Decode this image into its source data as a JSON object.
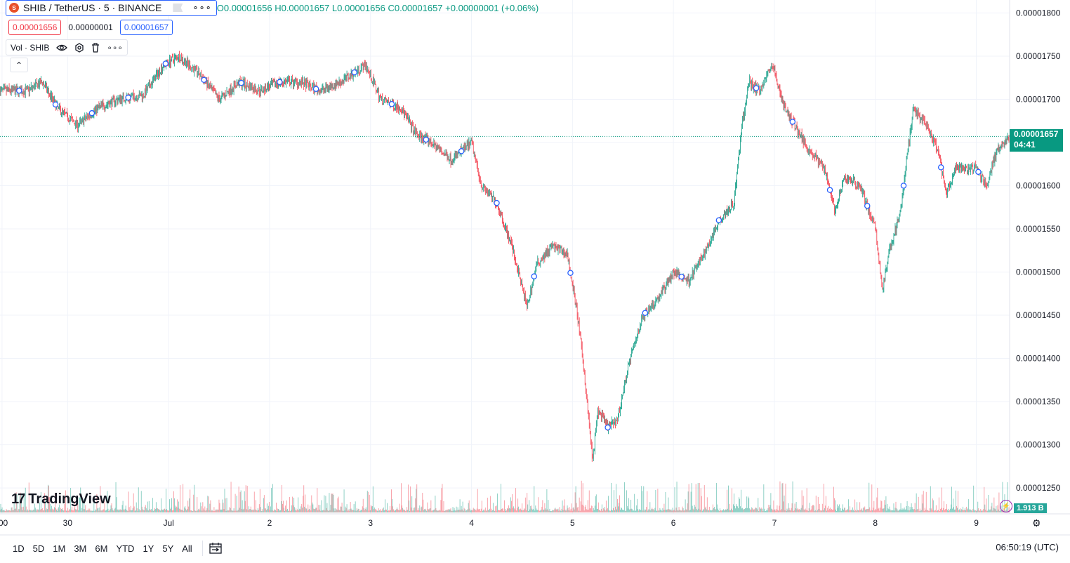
{
  "header": {
    "symbol": "SHIB / TetherUS · 5 · BINANCE",
    "coin_glyph": "S",
    "more": "∘∘∘",
    "ohlc": {
      "open": "O0.00001656",
      "high": "H0.00001657",
      "low": "L0.00001656",
      "close": "C0.00001657",
      "change": "+0.00000001 (+0.06%)"
    }
  },
  "trade": {
    "sell": "0.00001656",
    "spread": "0.00000001",
    "buy": "0.00001657"
  },
  "volume_legend": {
    "label": "Vol · SHIB",
    "more": "∘∘∘"
  },
  "collapse": "⌃",
  "logo": {
    "mark": "17",
    "text": "TradingView"
  },
  "price_tag": {
    "price": "0.00001657",
    "countdown": "04:41"
  },
  "volume_tag": "1.913 B",
  "bottom": {
    "timeframes": [
      "1D",
      "5D",
      "1M",
      "3M",
      "6M",
      "YTD",
      "1Y",
      "5Y",
      "All"
    ],
    "clock": "06:50:19 (UTC)"
  },
  "colors": {
    "up": "#089981",
    "down": "#f23645",
    "grid": "#f0f3fa",
    "marker": "#2962ff"
  },
  "chart_data": {
    "type": "candlestick",
    "y_ticks": [
      "0.00001800",
      "0.00001750",
      "0.00001700",
      "0.00001650",
      "0.00001600",
      "0.00001550",
      "0.00001500",
      "0.00001450",
      "0.00001400",
      "0.00001350",
      "0.00001300",
      "0.00001250"
    ],
    "ylim": [
      1.22e-05,
      1.815e-05
    ],
    "x_ticks": [
      ":00",
      "30",
      "Jul",
      "2",
      "3",
      "4",
      "5",
      "6",
      "7",
      "8",
      "9"
    ],
    "x_tick_days": [
      -0.65,
      0,
      1,
      2,
      3,
      4,
      5,
      6,
      7,
      8,
      9
    ],
    "xlim_days": [
      -0.67,
      9.33
    ],
    "last_price": 1.657e-05,
    "price_path": [
      [
        -0.67,
        1.71e-05
      ],
      [
        -0.4,
        1.71e-05
      ],
      [
        -0.25,
        1.72e-05
      ],
      [
        -0.1,
        1.69e-05
      ],
      [
        0.1,
        1.67e-05
      ],
      [
        0.3,
        1.69e-05
      ],
      [
        0.5,
        1.7e-05
      ],
      [
        0.75,
        1.705e-05
      ],
      [
        0.95,
        1.74e-05
      ],
      [
        1.1,
        1.75e-05
      ],
      [
        1.3,
        1.73e-05
      ],
      [
        1.5,
        1.7e-05
      ],
      [
        1.7,
        1.72e-05
      ],
      [
        1.9,
        1.71e-05
      ],
      [
        2.1,
        1.72e-05
      ],
      [
        2.3,
        1.72e-05
      ],
      [
        2.5,
        1.71e-05
      ],
      [
        2.7,
        1.72e-05
      ],
      [
        2.95,
        1.74e-05
      ],
      [
        3.1,
        1.7e-05
      ],
      [
        3.3,
        1.69e-05
      ],
      [
        3.45,
        1.66e-05
      ],
      [
        3.6,
        1.65e-05
      ],
      [
        3.8,
        1.63e-05
      ],
      [
        4.0,
        1.65e-05
      ],
      [
        4.1,
        1.6e-05
      ],
      [
        4.25,
        1.58e-05
      ],
      [
        4.4,
        1.53e-05
      ],
      [
        4.55,
        1.46e-05
      ],
      [
        4.65,
        1.51e-05
      ],
      [
        4.8,
        1.53e-05
      ],
      [
        4.95,
        1.52e-05
      ],
      [
        5.05,
        1.45e-05
      ],
      [
        5.12,
        1.38e-05
      ],
      [
        5.2,
        1.28e-05
      ],
      [
        5.25,
        1.34e-05
      ],
      [
        5.35,
        1.32e-05
      ],
      [
        5.45,
        1.33e-05
      ],
      [
        5.55,
        1.39e-05
      ],
      [
        5.7,
        1.45e-05
      ],
      [
        5.85,
        1.47e-05
      ],
      [
        6.0,
        1.5e-05
      ],
      [
        6.15,
        1.49e-05
      ],
      [
        6.3,
        1.52e-05
      ],
      [
        6.45,
        1.56e-05
      ],
      [
        6.6,
        1.58e-05
      ],
      [
        6.68,
        1.67e-05
      ],
      [
        6.75,
        1.72e-05
      ],
      [
        6.85,
        1.71e-05
      ],
      [
        6.98,
        1.74e-05
      ],
      [
        7.1,
        1.69e-05
      ],
      [
        7.2,
        1.67e-05
      ],
      [
        7.35,
        1.64e-05
      ],
      [
        7.5,
        1.62e-05
      ],
      [
        7.6,
        1.57e-05
      ],
      [
        7.7,
        1.61e-05
      ],
      [
        7.85,
        1.6e-05
      ],
      [
        8.0,
        1.55e-05
      ],
      [
        8.07,
        1.48e-05
      ],
      [
        8.15,
        1.53e-05
      ],
      [
        8.25,
        1.57e-05
      ],
      [
        8.32,
        1.64e-05
      ],
      [
        8.38,
        1.69e-05
      ],
      [
        8.5,
        1.67e-05
      ],
      [
        8.62,
        1.64e-05
      ],
      [
        8.7,
        1.59e-05
      ],
      [
        8.8,
        1.62e-05
      ],
      [
        9.0,
        1.62e-05
      ],
      [
        9.1,
        1.6e-05
      ],
      [
        9.2,
        1.64e-05
      ],
      [
        9.33,
        1.657e-05
      ]
    ],
    "event_markers": [
      -0.48,
      -0.12,
      0.24,
      0.6,
      0.97,
      1.35,
      1.72,
      2.1,
      2.46,
      2.84,
      3.21,
      3.55,
      3.9,
      4.25,
      4.62,
      4.98,
      5.35,
      5.72,
      6.08,
      6.45,
      6.82,
      7.18,
      7.55,
      7.92,
      8.28,
      8.65,
      9.02
    ]
  }
}
